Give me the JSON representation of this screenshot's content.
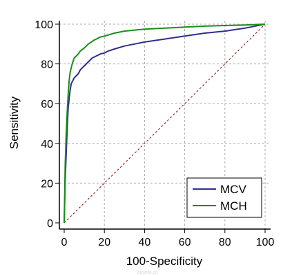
{
  "chart_data": {
    "type": "line",
    "xlabel": "100-Specificity",
    "ylabel": "Sensitivity",
    "xlim": [
      0,
      100
    ],
    "ylim": [
      0,
      100
    ],
    "xticks": [
      0,
      20,
      40,
      60,
      80,
      100
    ],
    "yticks": [
      0,
      20,
      40,
      60,
      80,
      100
    ],
    "grid": "dashed",
    "legend_position": "bottom-right",
    "reference_line": {
      "x": [
        0,
        100
      ],
      "y": [
        0,
        100
      ],
      "style": "dashed",
      "color": "#8b0000"
    },
    "series": [
      {
        "name": "MCV",
        "color": "#2e2e8c",
        "x": [
          0,
          0.5,
          1,
          1.5,
          2,
          2.5,
          3,
          3.5,
          4,
          5,
          6,
          7,
          8,
          10,
          12,
          14,
          16,
          18,
          20,
          22,
          25,
          30,
          35,
          40,
          50,
          60,
          70,
          80,
          90,
          100
        ],
        "y": [
          0,
          22,
          35,
          48,
          58,
          63,
          67,
          70,
          71,
          73,
          74,
          75,
          77,
          79,
          81,
          83,
          84,
          85,
          85.5,
          86.5,
          87.5,
          89,
          90,
          91,
          92.5,
          94,
          95.5,
          96.5,
          98,
          100
        ]
      },
      {
        "name": "MCH",
        "color": "#1a8c1a",
        "x": [
          0,
          0.5,
          1,
          1.5,
          2,
          2.5,
          3,
          4,
          5,
          6,
          7,
          8,
          10,
          12,
          15,
          18,
          20,
          25,
          30,
          35,
          40,
          50,
          60,
          70,
          80,
          90,
          100
        ],
        "y": [
          0,
          30,
          45,
          56,
          65,
          72,
          76,
          80,
          83,
          84,
          85,
          86.5,
          88,
          90,
          92,
          93.5,
          94,
          95.5,
          96.5,
          97,
          97.5,
          98,
          98.5,
          99,
          99.3,
          99.6,
          100
        ]
      }
    ]
  },
  "watermark": "bioinfo.cn"
}
